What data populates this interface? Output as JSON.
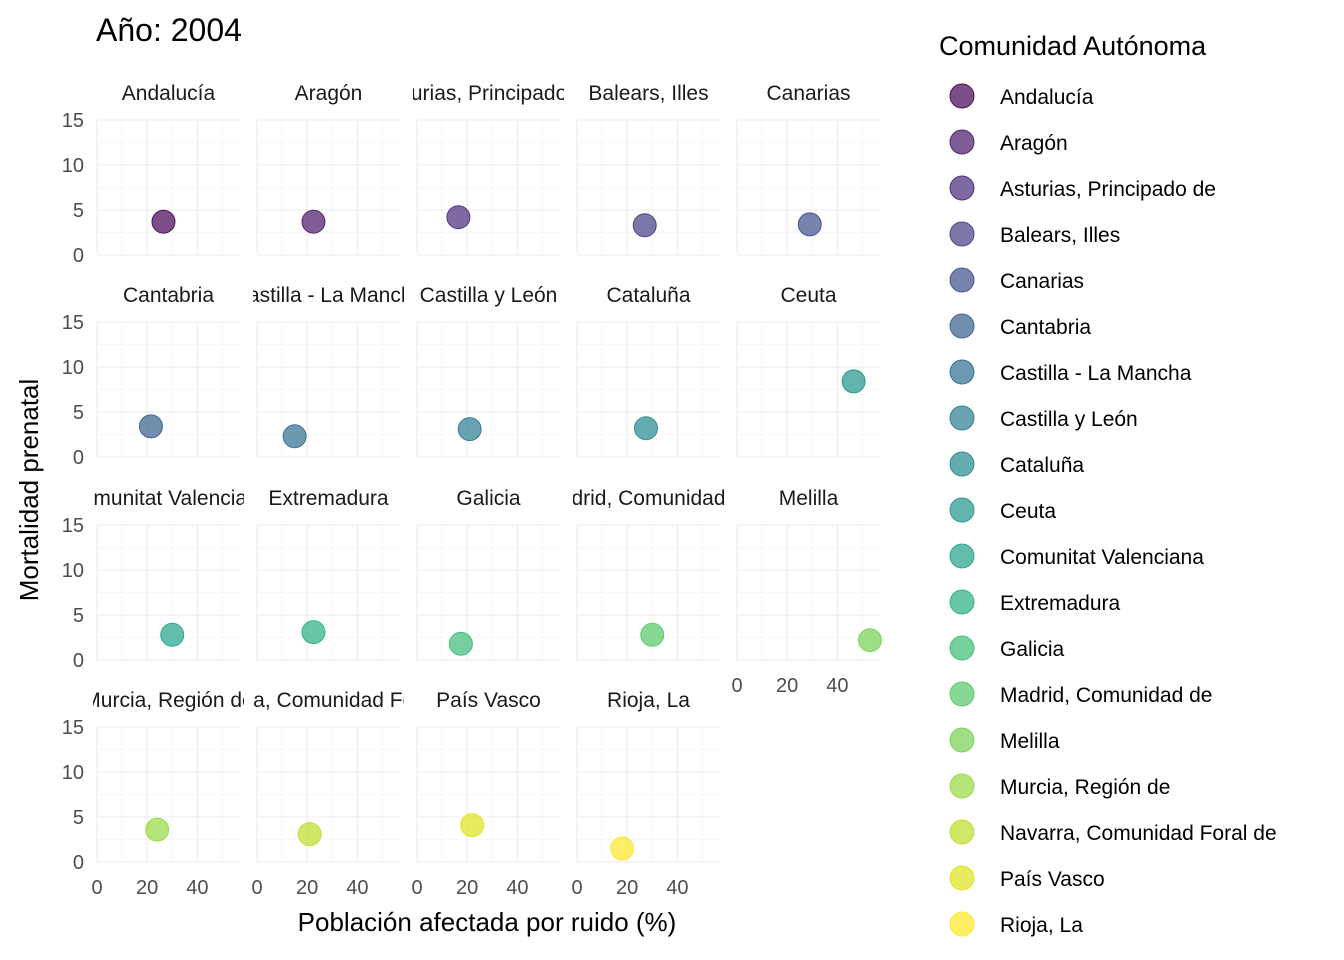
{
  "chart_data": {
    "type": "scatter",
    "title": "Año: 2004",
    "xlabel": "Población afectada por ruido (%)",
    "ylabel": "Mortalidad prenatal",
    "xlim": [
      0,
      57
    ],
    "ylim": [
      0,
      15
    ],
    "x_ticks": [
      0,
      20,
      40
    ],
    "y_ticks": [
      0,
      5,
      10,
      15
    ],
    "grid": true,
    "legend_title": "Comunidad Autónoma",
    "legend_position": "right",
    "panels": [
      {
        "name": "Andalucía",
        "x": 26.5,
        "y": 3.7,
        "color": "#440154"
      },
      {
        "name": "Aragón",
        "x": 22.5,
        "y": 3.7,
        "color": "#481769"
      },
      {
        "name": "Asturias, Principado de",
        "x": 16.5,
        "y": 4.2,
        "color": "#472A7A"
      },
      {
        "name": "Balears, Illes",
        "x": 27.0,
        "y": 3.3,
        "color": "#433D84"
      },
      {
        "name": "Canarias",
        "x": 29.0,
        "y": 3.4,
        "color": "#3D4E8A"
      },
      {
        "name": "Cantabria",
        "x": 21.5,
        "y": 3.4,
        "color": "#355E8D"
      },
      {
        "name": "Castilla - La Mancha",
        "x": 15.0,
        "y": 2.3,
        "color": "#2E6D8E"
      },
      {
        "name": "Castilla y León",
        "x": 21.0,
        "y": 3.1,
        "color": "#297B8E"
      },
      {
        "name": "Cataluña",
        "x": 27.5,
        "y": 3.2,
        "color": "#23898E"
      },
      {
        "name": "Ceuta",
        "x": 46.5,
        "y": 8.4,
        "color": "#1F968B"
      },
      {
        "name": "Comunitat Valenciana",
        "x": 30.0,
        "y": 2.8,
        "color": "#20A386"
      },
      {
        "name": "Extremadura",
        "x": 22.5,
        "y": 3.1,
        "color": "#29AF7F"
      },
      {
        "name": "Galicia",
        "x": 17.5,
        "y": 1.8,
        "color": "#3CBC75"
      },
      {
        "name": "Madrid, Comunidad de",
        "x": 30.0,
        "y": 2.8,
        "color": "#56C667"
      },
      {
        "name": "Melilla",
        "x": 53.0,
        "y": 2.2,
        "color": "#75D054"
      },
      {
        "name": "Murcia, Región de",
        "x": 24.0,
        "y": 3.6,
        "color": "#95D840"
      },
      {
        "name": "Navarra, Comunidad Foral de",
        "x": 21.0,
        "y": 3.1,
        "color": "#BADE28"
      },
      {
        "name": "País Vasco",
        "x": 22.0,
        "y": 4.1,
        "color": "#DDE318"
      },
      {
        "name": "Rioja, La",
        "x": 18.0,
        "y": 1.5,
        "color": "#FDE725"
      }
    ]
  }
}
